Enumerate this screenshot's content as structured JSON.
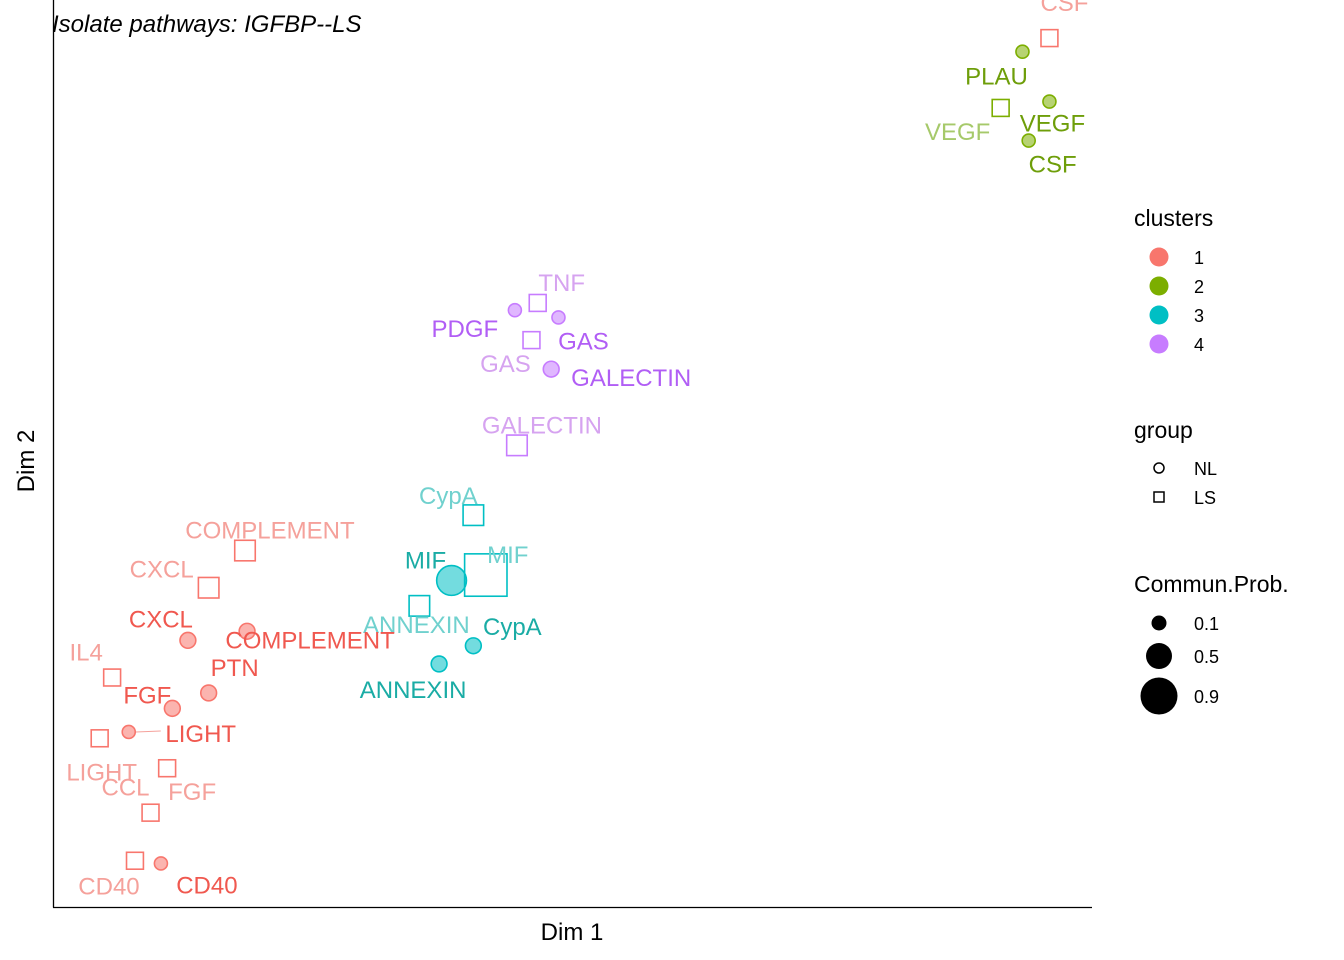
{
  "chart_data": {
    "type": "scatter",
    "title": "Isolate pathways:  IGFBP--LS",
    "xlabel": "Dim 1",
    "ylabel": "Dim 2",
    "xlim": [
      0,
      100
    ],
    "ylim": [
      0,
      100
    ],
    "grid": false,
    "colors": {
      "1": {
        "NL": "#F8766D",
        "LS": "#F8766D",
        "label_NL": "#F0584F",
        "label_LS": "#F5A19B"
      },
      "2": {
        "NL": "#7CAE00",
        "LS": "#7CAE00",
        "label_NL": "#6E9E0A",
        "label_LS": "#A6C96A"
      },
      "3": {
        "NL": "#00BFC4",
        "LS": "#00BFC4",
        "label_NL": "#1AACA5",
        "label_LS": "#70D1CE"
      },
      "4": {
        "NL": "#C77CFF",
        "LS": "#C77CFF",
        "label_NL": "#B15EF5",
        "label_LS": "#D6A3F0"
      }
    },
    "points": [
      {
        "pathway": "CSF",
        "group": "LS",
        "cluster": "1",
        "x": 95.9,
        "y": 95.8,
        "prob": 0.1
      },
      {
        "pathway": "PLAU",
        "group": "NL",
        "cluster": "2",
        "x": 93.3,
        "y": 94.3,
        "prob": 0.1
      },
      {
        "pathway": "VEGF",
        "group": "NL",
        "cluster": "2",
        "x": 95.9,
        "y": 88.8,
        "prob": 0.1
      },
      {
        "pathway": "VEGF",
        "group": "LS",
        "cluster": "2",
        "x": 91.2,
        "y": 88.1,
        "prob": 0.1
      },
      {
        "pathway": "CSF",
        "group": "NL",
        "cluster": "2",
        "x": 93.9,
        "y": 84.5,
        "prob": 0.1
      },
      {
        "pathway": "TNF",
        "group": "LS",
        "cluster": "4",
        "x": 46.6,
        "y": 66.6,
        "prob": 0.1
      },
      {
        "pathway": "PDGF",
        "group": "NL",
        "cluster": "4",
        "x": 44.4,
        "y": 65.8,
        "prob": 0.1
      },
      {
        "pathway": "GAS",
        "group": "NL",
        "cluster": "4",
        "x": 48.6,
        "y": 65.0,
        "prob": 0.1
      },
      {
        "pathway": "GAS",
        "group": "LS",
        "cluster": "4",
        "x": 46.0,
        "y": 62.5,
        "prob": 0.1
      },
      {
        "pathway": "GALECTIN",
        "group": "NL",
        "cluster": "4",
        "x": 47.9,
        "y": 59.3,
        "prob": 0.2
      },
      {
        "pathway": "GALECTIN",
        "group": "LS",
        "cluster": "4",
        "x": 44.6,
        "y": 50.9,
        "prob": 0.2
      },
      {
        "pathway": "CypA",
        "group": "LS",
        "cluster": "3",
        "x": 40.4,
        "y": 43.2,
        "prob": 0.2
      },
      {
        "pathway": "MIF",
        "group": "NL",
        "cluster": "3",
        "x": 38.3,
        "y": 36.0,
        "prob": 0.7
      },
      {
        "pathway": "MIF",
        "group": "LS",
        "cluster": "3",
        "x": 41.6,
        "y": 36.6,
        "prob": 0.8
      },
      {
        "pathway": "ANNEXIN",
        "group": "LS",
        "cluster": "3",
        "x": 35.2,
        "y": 33.2,
        "prob": 0.2
      },
      {
        "pathway": "CypA",
        "group": "NL",
        "cluster": "3",
        "x": 40.4,
        "y": 28.8,
        "prob": 0.2
      },
      {
        "pathway": "ANNEXIN",
        "group": "NL",
        "cluster": "3",
        "x": 37.1,
        "y": 26.8,
        "prob": 0.2
      },
      {
        "pathway": "COMPLEMENT",
        "group": "LS",
        "cluster": "1",
        "x": 18.4,
        "y": 39.3,
        "prob": 0.2
      },
      {
        "pathway": "CXCL",
        "group": "LS",
        "cluster": "1",
        "x": 14.9,
        "y": 35.2,
        "prob": 0.2
      },
      {
        "pathway": "CXCL",
        "group": "NL",
        "cluster": "1",
        "x": 12.9,
        "y": 29.4,
        "prob": 0.2
      },
      {
        "pathway": "COMPLEMENT",
        "group": "NL",
        "cluster": "1",
        "x": 18.6,
        "y": 30.4,
        "prob": 0.2
      },
      {
        "pathway": "IL4",
        "group": "LS",
        "cluster": "1",
        "x": 5.6,
        "y": 25.3,
        "prob": 0.1
      },
      {
        "pathway": "PTN",
        "group": "NL",
        "cluster": "1",
        "x": 14.9,
        "y": 23.6,
        "prob": 0.2
      },
      {
        "pathway": "FGF",
        "group": "NL",
        "cluster": "1",
        "x": 11.4,
        "y": 21.9,
        "prob": 0.2
      },
      {
        "pathway": "LIGHT",
        "group": "NL",
        "cluster": "1",
        "x": 7.2,
        "y": 19.3,
        "prob": 0.1
      },
      {
        "pathway": "LIGHT",
        "group": "LS",
        "cluster": "1",
        "x": 4.4,
        "y": 18.6,
        "prob": 0.1
      },
      {
        "pathway": "FGF",
        "group": "LS",
        "cluster": "1",
        "x": 10.9,
        "y": 15.3,
        "prob": 0.1
      },
      {
        "pathway": "CCL",
        "group": "LS",
        "cluster": "1",
        "x": 9.3,
        "y": 10.4,
        "prob": 0.1
      },
      {
        "pathway": "CD40",
        "group": "LS",
        "cluster": "1",
        "x": 7.8,
        "y": 5.1,
        "prob": 0.1
      },
      {
        "pathway": "CD40",
        "group": "NL",
        "cluster": "1",
        "x": 10.3,
        "y": 4.8,
        "prob": 0.1
      }
    ],
    "legend": {
      "placement": "right",
      "clusters_title": "clusters",
      "clusters": [
        {
          "label": "1",
          "color": "#F8766D"
        },
        {
          "label": "2",
          "color": "#7CAE00"
        },
        {
          "label": "3",
          "color": "#00BFC4"
        },
        {
          "label": "4",
          "color": "#C77CFF"
        }
      ],
      "group_title": "group",
      "groups": [
        {
          "label": "NL",
          "shape": "circle"
        },
        {
          "label": "LS",
          "shape": "square"
        }
      ],
      "size_title": "Commun.Prob.",
      "sizes": [
        {
          "label": "0.1",
          "value": 0.1
        },
        {
          "label": "0.5",
          "value": 0.5
        },
        {
          "label": "0.9",
          "value": 0.9
        }
      ]
    }
  }
}
